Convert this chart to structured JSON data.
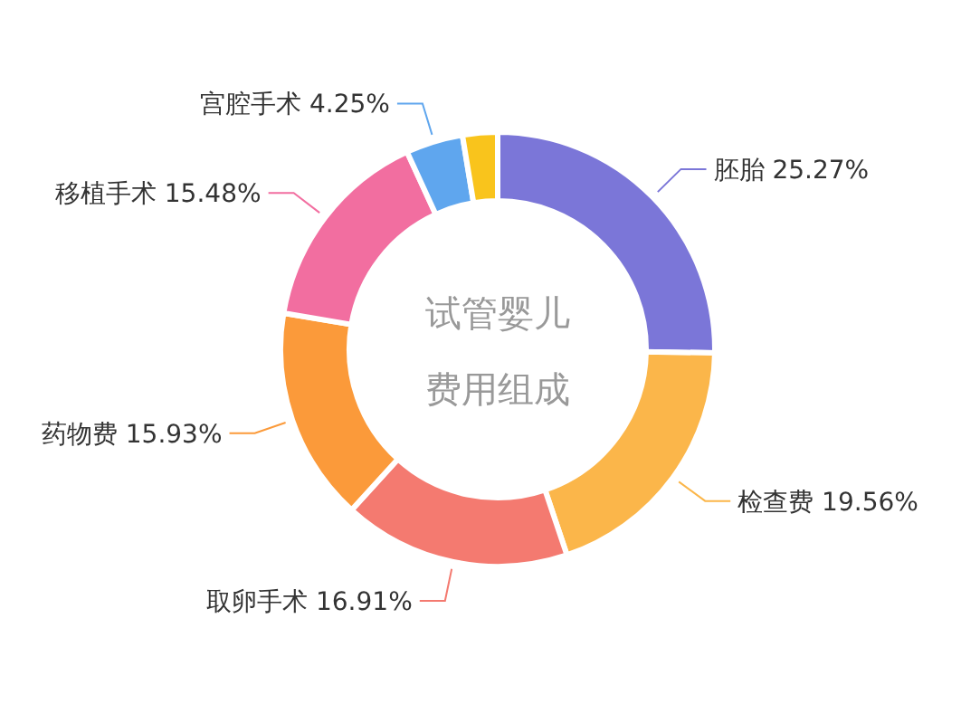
{
  "chart_data": {
    "type": "donut",
    "title": "试管婴儿费用组成",
    "categories": [
      "胚胎",
      "检查费",
      "取卵手术",
      "药物费",
      "移植手术",
      "宫腔手术",
      null
    ],
    "values": [
      25.27,
      19.56,
      16.91,
      15.93,
      15.48,
      4.25,
      2.6
    ],
    "value_labels": [
      "25.27%",
      "19.56%",
      "16.91%",
      "15.93%",
      "15.48%",
      "4.25%",
      null
    ],
    "colors": [
      "#7b76d8",
      "#fbb64a",
      "#f47a70",
      "#fb9a3a",
      "#f26ea0",
      "#5fa6ee",
      "#f9c41c"
    ],
    "legend": false
  }
}
